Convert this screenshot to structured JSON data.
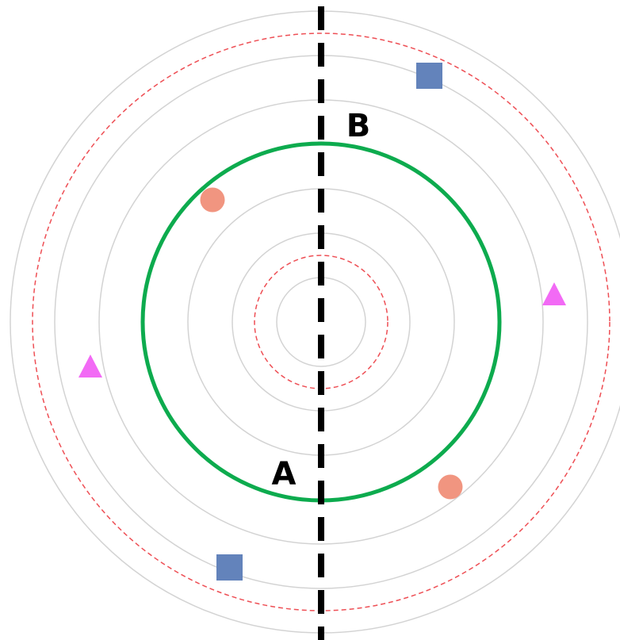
{
  "labels": {
    "b": "B",
    "a": "A"
  }
}
